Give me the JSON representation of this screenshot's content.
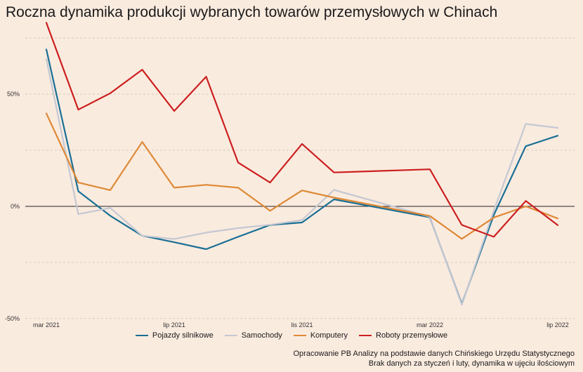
{
  "chart_data": {
    "type": "line",
    "title": "Roczna dynamika produkcji wybranych towarów przemysłowych w Chinach",
    "xlabel": "",
    "ylabel": "",
    "x": [
      "2021-03",
      "2021-04",
      "2021-05",
      "2021-06",
      "2021-07",
      "2021-08",
      "2021-09",
      "2021-10",
      "2021-11",
      "2021-12",
      "2022-01",
      "2022-02",
      "2022-03",
      "2022-04",
      "2022-05",
      "2022-06",
      "2022-07"
    ],
    "x_tick_labels": [
      {
        "x": "2021-03",
        "label": "mar 2021"
      },
      {
        "x": "2021-07",
        "label": "lip 2021"
      },
      {
        "x": "2021-11",
        "label": "lis 2021"
      },
      {
        "x": "2022-03",
        "label": "mar 2022"
      },
      {
        "x": "2022-07",
        "label": "lip 2022"
      }
    ],
    "y_ticks": [
      {
        "value": -50,
        "label": "-50%"
      },
      {
        "value": 0,
        "label": "0%"
      },
      {
        "value": 50,
        "label": "50%"
      }
    ],
    "ylim": [
      -51,
      81
    ],
    "grid": true,
    "legend_position": "bottom",
    "series": [
      {
        "name": "Pojazdy silnikowe",
        "color": "#1a6f95",
        "values": [
          69.9,
          6.7,
          -4.2,
          -13.1,
          -16.0,
          -19.1,
          -13.6,
          -8.3,
          -7.2,
          3.1,
          null,
          null,
          -4.9,
          -43.5,
          -3.9,
          26.8,
          31.5
        ]
      },
      {
        "name": "Samochody",
        "color": "#c5c8d2",
        "values": [
          65.6,
          -3.5,
          -0.7,
          -13.1,
          -14.6,
          -11.7,
          -9.7,
          -8.2,
          -6.1,
          7.3,
          null,
          null,
          -4.6,
          -43.9,
          -1.9,
          36.7,
          35.0
        ]
      },
      {
        "name": "Komputery",
        "color": "#de8936",
        "values": [
          41.4,
          10.6,
          7.2,
          28.7,
          8.3,
          9.6,
          8.3,
          -2.0,
          7.1,
          3.9,
          null,
          null,
          -4.3,
          -14.5,
          -5.0,
          0.0,
          -5.4
        ]
      },
      {
        "name": "Roboty przemysłowe",
        "color": "#cc1f1f",
        "values": [
          81.8,
          43.1,
          50.4,
          60.9,
          42.5,
          57.8,
          19.5,
          10.6,
          27.8,
          15.1,
          null,
          null,
          16.5,
          -8.3,
          -13.6,
          2.4,
          -8.4
        ]
      }
    ]
  },
  "captions": {
    "source": "Opracowanie PB Analizy na podstawie danych Chińskiego Urzędu Statystycznego",
    "note": "Brak danych za styczeń i luty, dynamika w ujęciu ilościowym"
  }
}
